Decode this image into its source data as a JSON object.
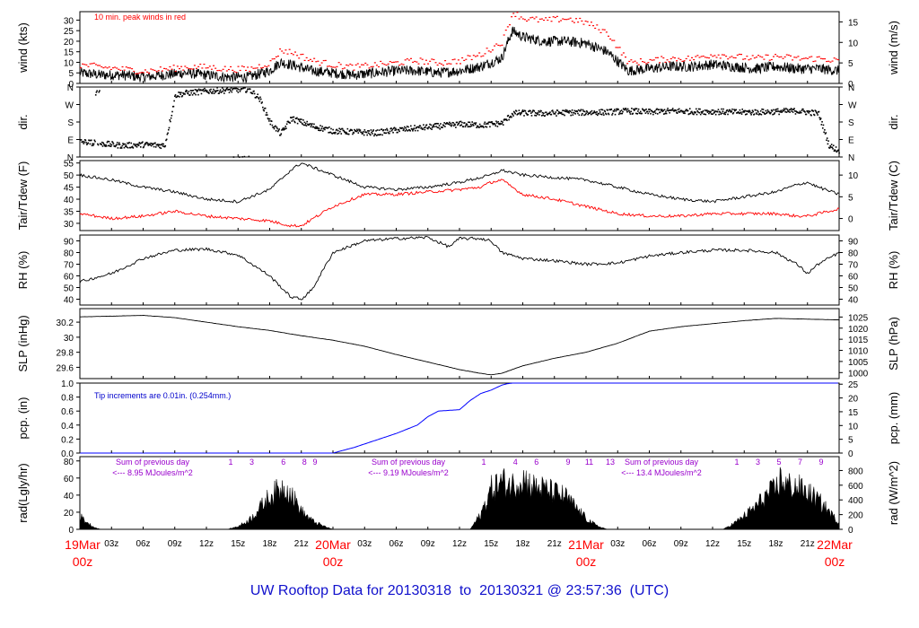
{
  "footer": {
    "prefix": "UW Rooftop Data for",
    "start": "20130318",
    "to": "to",
    "end": "20130321",
    "at": "@",
    "time": "23:57:36",
    "tz": "(UTC)"
  },
  "colors": {
    "trace": "#000000",
    "peak": "#ff0000",
    "dew": "#ff0000",
    "precip": "#0000ff",
    "annot_blue": "#0000cc",
    "purple": "#9900cc",
    "red_axis": "#ff0000"
  },
  "time_axis": {
    "hours_total": 72,
    "tick_labels": [
      "03z",
      "06z",
      "09z",
      "12z",
      "15z",
      "18z",
      "21z",
      "03z",
      "06z",
      "09z",
      "12z",
      "15z",
      "18z",
      "21z",
      "03z",
      "06z",
      "09z",
      "12z",
      "15z",
      "18z",
      "21z"
    ],
    "tick_hours": [
      3,
      6,
      9,
      12,
      15,
      18,
      21,
      27,
      30,
      33,
      36,
      39,
      42,
      45,
      51,
      54,
      57,
      60,
      63,
      66,
      69
    ],
    "day_labels": [
      {
        "date": "19Mar",
        "hour": "00z",
        "at": 0
      },
      {
        "date": "20Mar",
        "hour": "00z",
        "at": 24
      },
      {
        "date": "21Mar",
        "hour": "00z",
        "at": 48
      },
      {
        "date": "22Mar",
        "hour": "00z",
        "at": 72
      }
    ]
  },
  "chart_data": [
    {
      "type": "line",
      "id": "wind",
      "ylabel_left": "wind (kts)",
      "ylabel_right": "wind (m/s)",
      "annotation": "10 min. peak winds in red",
      "ylim": [
        0,
        34
      ],
      "left_ticks": [
        0,
        5,
        10,
        15,
        20,
        25,
        30
      ],
      "right_ticks": [
        0,
        5,
        10,
        15
      ],
      "right_factor": 0.5144,
      "series": [
        {
          "name": "wind",
          "x": [
            0,
            2,
            4,
            6,
            8,
            10,
            12,
            14,
            16,
            18,
            19,
            20,
            22,
            24,
            26,
            28,
            30,
            32,
            34,
            36,
            38,
            40,
            41,
            42,
            44,
            46,
            48,
            50,
            52,
            54,
            56,
            58,
            60,
            62,
            64,
            66,
            68,
            70,
            72
          ],
          "values": [
            5,
            4,
            4,
            3,
            4,
            5,
            4,
            3,
            3,
            6,
            10,
            9,
            6,
            5,
            4,
            5,
            6,
            6,
            5,
            6,
            8,
            12,
            25,
            22,
            20,
            20,
            19,
            15,
            6,
            7,
            8,
            8,
            9,
            8,
            7,
            8,
            7,
            7,
            6
          ]
        },
        {
          "name": "10 min. peak",
          "x": [
            0,
            2,
            4,
            6,
            8,
            10,
            12,
            14,
            16,
            18,
            19,
            20,
            22,
            24,
            26,
            28,
            30,
            32,
            34,
            36,
            38,
            40,
            41,
            42,
            44,
            46,
            48,
            50,
            52,
            54,
            56,
            58,
            60,
            62,
            64,
            66,
            68,
            70,
            72
          ],
          "values": [
            9,
            8,
            7,
            6,
            7,
            8,
            8,
            7,
            7,
            10,
            16,
            15,
            11,
            9,
            8,
            9,
            10,
            11,
            10,
            11,
            14,
            20,
            34,
            31,
            30,
            31,
            29,
            24,
            10,
            11,
            12,
            12,
            14,
            13,
            12,
            13,
            12,
            12,
            11
          ]
        }
      ]
    },
    {
      "type": "scatter",
      "id": "dir",
      "ylabel_left": "dir.",
      "ylabel_right": "dir.",
      "ylim": [
        0,
        360
      ],
      "tick_labels": [
        "N",
        "E",
        "S",
        "W",
        "N"
      ],
      "tick_values": [
        0,
        90,
        180,
        270,
        360
      ],
      "series": [
        {
          "name": "direction",
          "x": [
            0,
            2,
            4,
            6,
            8,
            9,
            10,
            12,
            14,
            16,
            17,
            18,
            19,
            20,
            22,
            24,
            26,
            28,
            30,
            32,
            34,
            36,
            38,
            40,
            41,
            42,
            44,
            46,
            48,
            50,
            52,
            54,
            56,
            58,
            60,
            62,
            64,
            66,
            68,
            70,
            71,
            72
          ],
          "values": [
            80,
            70,
            60,
            65,
            60,
            320,
            330,
            340,
            345,
            350,
            300,
            180,
            120,
            200,
            160,
            135,
            130,
            125,
            140,
            150,
            160,
            170,
            165,
            175,
            225,
            228,
            225,
            230,
            230,
            232,
            238,
            232,
            238,
            235,
            235,
            232,
            232,
            235,
            238,
            225,
            60,
            30
          ]
        }
      ]
    },
    {
      "type": "line",
      "id": "temp",
      "ylabel_left": "Tair/Tdew (F)",
      "ylabel_right": "Tair/Tdew (C)",
      "ylim": [
        27,
        56
      ],
      "left_ticks": [
        30,
        35,
        40,
        45,
        50,
        55
      ],
      "right_ticks": [
        0,
        5,
        10
      ],
      "series": [
        {
          "name": "Tair",
          "x": [
            0,
            3,
            6,
            9,
            12,
            15,
            18,
            20,
            21,
            24,
            27,
            30,
            33,
            36,
            38,
            39,
            40,
            42,
            45,
            48,
            51,
            54,
            57,
            60,
            63,
            66,
            68,
            69,
            70,
            72
          ],
          "values": [
            50,
            48,
            45,
            43,
            40,
            39,
            44,
            52,
            55,
            50,
            45,
            44,
            45,
            47,
            49,
            50,
            52,
            50,
            49,
            48,
            45,
            42,
            40,
            39,
            41,
            43,
            46,
            47,
            45,
            42
          ]
        },
        {
          "name": "Tdew",
          "x": [
            0,
            3,
            6,
            9,
            12,
            15,
            18,
            20,
            21,
            24,
            27,
            30,
            33,
            36,
            38,
            39,
            40,
            42,
            45,
            48,
            51,
            54,
            57,
            60,
            63,
            66,
            68,
            69,
            70,
            72
          ],
          "values": [
            34,
            32,
            33,
            35,
            33,
            32,
            31,
            29,
            29,
            37,
            42,
            42,
            43,
            44,
            45,
            47,
            48,
            42,
            40,
            37,
            34,
            33,
            33,
            34,
            34,
            34,
            33,
            33,
            34,
            36
          ]
        }
      ]
    },
    {
      "type": "line",
      "id": "rh",
      "ylabel_left": "RH (%)",
      "ylabel_right": "RH (%)",
      "ylim": [
        35,
        95
      ],
      "left_ticks": [
        40,
        50,
        60,
        70,
        80,
        90
      ],
      "right_ticks": [
        40,
        50,
        60,
        70,
        80,
        90
      ],
      "series": [
        {
          "name": "RH",
          "x": [
            0,
            3,
            6,
            9,
            12,
            15,
            18,
            20,
            21,
            22,
            24,
            27,
            30,
            33,
            35,
            36,
            38,
            39,
            40,
            42,
            45,
            48,
            51,
            54,
            57,
            60,
            63,
            66,
            68,
            69,
            70,
            72
          ],
          "values": [
            55,
            62,
            75,
            82,
            83,
            78,
            60,
            42,
            40,
            48,
            80,
            90,
            92,
            93,
            85,
            92,
            92,
            90,
            80,
            75,
            73,
            70,
            71,
            77,
            80,
            82,
            82,
            80,
            70,
            62,
            70,
            80
          ]
        }
      ]
    },
    {
      "type": "line",
      "id": "slp",
      "ylabel_left": "SLP (inHg)",
      "ylabel_right": "SLP (hPa)",
      "ylim": [
        29.45,
        30.38
      ],
      "left_ticks": [
        29.6,
        29.8,
        30.0,
        30.2
      ],
      "right_ticks": [
        1000,
        1005,
        1010,
        1015,
        1020,
        1025
      ],
      "series": [
        {
          "name": "SLP",
          "x": [
            0,
            3,
            6,
            9,
            12,
            15,
            18,
            21,
            24,
            27,
            30,
            33,
            36,
            38,
            39,
            40,
            42,
            45,
            48,
            51,
            54,
            57,
            60,
            63,
            66,
            69,
            72
          ],
          "values": [
            30.27,
            30.28,
            30.29,
            30.26,
            30.2,
            30.14,
            30.09,
            30.02,
            29.96,
            29.88,
            29.77,
            29.67,
            29.57,
            29.52,
            29.5,
            29.52,
            29.62,
            29.72,
            29.8,
            29.92,
            30.08,
            30.14,
            30.18,
            30.22,
            30.25,
            30.24,
            30.23
          ]
        }
      ]
    },
    {
      "type": "area",
      "id": "pcp",
      "ylabel_left": "pcp. (in)",
      "ylabel_right": "pcp. (mm)",
      "annotation": "Tip increments are 0.01in. (0.254mm.)",
      "ylim": [
        0,
        1.0
      ],
      "left_ticks": [
        0.0,
        0.2,
        0.4,
        0.6,
        0.8,
        1.0
      ],
      "left_tick_labels": [
        "0.0",
        "0.2",
        "0.4",
        "0.6",
        "0.8",
        "1.0"
      ],
      "right_ticks": [
        0,
        5,
        10,
        15,
        20,
        25
      ],
      "series": [
        {
          "name": "precip",
          "x": [
            0,
            24,
            26,
            28,
            30,
            32,
            33,
            34,
            35,
            36,
            37,
            38,
            39,
            40,
            40.5,
            41,
            48,
            72
          ],
          "values": [
            0,
            0,
            0.08,
            0.18,
            0.28,
            0.4,
            0.52,
            0.6,
            0.61,
            0.62,
            0.75,
            0.85,
            0.9,
            0.97,
            0.99,
            1.0,
            1.0,
            1.0
          ]
        }
      ]
    },
    {
      "type": "area",
      "id": "rad",
      "ylabel_left": "rad(Lgly/hr)",
      "ylabel_right": "rad (W/m^2)",
      "ylim": [
        0,
        85
      ],
      "left_ticks": [
        0,
        20,
        40,
        60,
        80
      ],
      "right_ticks": [
        0,
        200,
        400,
        600,
        800
      ],
      "right_factor": 11.63,
      "daily_sums": [
        {
          "title": "Sum of previous day",
          "value": "<--- 8.95 MJoules/m^2"
        },
        {
          "title": "Sum of previous day",
          "value": "<--- 9.19 MJoules/m^2"
        },
        {
          "title": "Sum of previous day",
          "value": "<--- 13.4 MJoules/m^2"
        }
      ],
      "hour_markers": [
        {
          "labels": [
            "1",
            "3",
            "6",
            "8",
            "9"
          ],
          "hours": [
            14.3,
            16.3,
            19.3,
            21.3,
            22.3
          ]
        },
        {
          "labels": [
            "1",
            "4",
            "6",
            "9",
            "11",
            "13"
          ],
          "hours": [
            38.3,
            41.3,
            43.3,
            46.3,
            48.3,
            50.3
          ]
        },
        {
          "labels": [
            "1",
            "3",
            "5",
            "7",
            "9"
          ],
          "hours": [
            62.3,
            64.3,
            66.3,
            68.3,
            70.3
          ]
        }
      ],
      "series": [
        {
          "name": "radiation",
          "x": [
            0,
            0.5,
            1,
            1.5,
            2,
            14,
            15,
            16,
            17,
            18,
            19,
            19.5,
            20,
            21,
            22,
            23,
            24,
            37,
            38,
            39,
            40,
            41,
            42,
            43,
            44,
            45,
            46,
            47,
            48,
            49,
            50,
            61,
            62,
            63,
            64,
            65,
            66,
            66.5,
            67,
            68,
            69,
            70,
            71,
            72
          ],
          "values": [
            18,
            12,
            6,
            2,
            0,
            0,
            4,
            12,
            28,
            45,
            55,
            58,
            50,
            25,
            12,
            5,
            0,
            0,
            20,
            55,
            65,
            60,
            70,
            58,
            55,
            50,
            45,
            30,
            15,
            5,
            0,
            0,
            8,
            18,
            30,
            45,
            55,
            70,
            60,
            58,
            50,
            40,
            25,
            8
          ]
        }
      ]
    }
  ]
}
